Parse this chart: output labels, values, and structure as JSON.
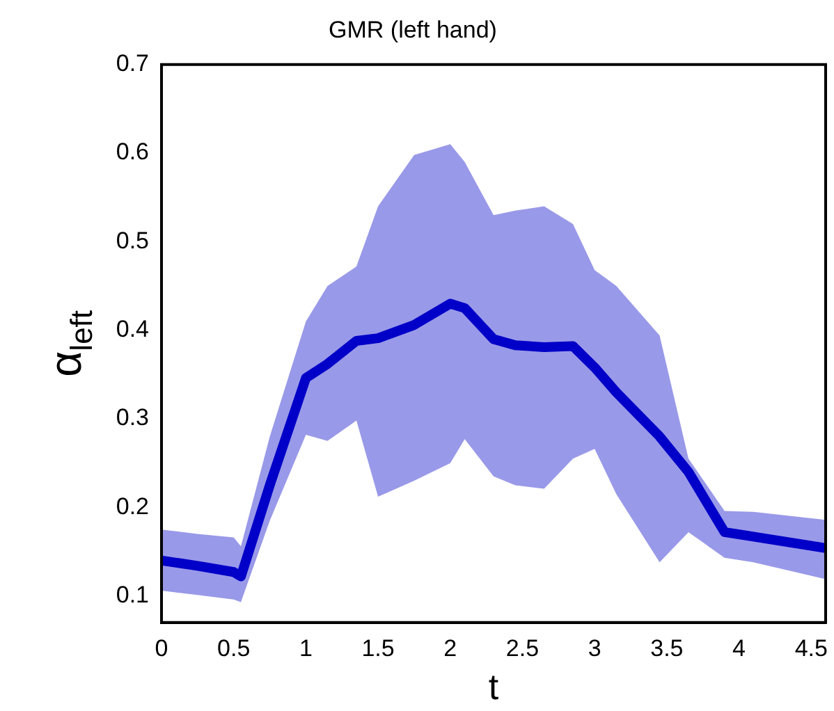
{
  "chart_data": {
    "type": "line",
    "title": "GMR (left hand)",
    "xlabel": "t",
    "ylabel": "α$_{left}$",
    "x": [
      0,
      0.25,
      0.5,
      0.55,
      0.75,
      1.0,
      1.15,
      1.35,
      1.5,
      1.75,
      2.0,
      2.1,
      2.3,
      2.45,
      2.65,
      2.85,
      3.0,
      3.15,
      3.45,
      3.65,
      3.9,
      4.1,
      4.6
    ],
    "series": [
      {
        "color": "#0000c8",
        "values": [
          0.14,
          0.134,
          0.127,
          0.122,
          0.225,
          0.346,
          0.362,
          0.388,
          0.391,
          0.406,
          0.43,
          0.425,
          0.39,
          0.383,
          0.381,
          0.382,
          0.358,
          0.33,
          0.28,
          0.24,
          0.172,
          0.167,
          0.154
        ],
        "lower": [
          0.106,
          0.101,
          0.096,
          0.093,
          0.185,
          0.282,
          0.275,
          0.298,
          0.212,
          0.23,
          0.25,
          0.277,
          0.235,
          0.225,
          0.221,
          0.255,
          0.266,
          0.215,
          0.138,
          0.172,
          0.143,
          0.138,
          0.119
        ],
        "upper": [
          0.175,
          0.17,
          0.166,
          0.156,
          0.28,
          0.41,
          0.45,
          0.472,
          0.54,
          0.598,
          0.61,
          0.59,
          0.53,
          0.535,
          0.54,
          0.52,
          0.468,
          0.45,
          0.394,
          0.255,
          0.196,
          0.195,
          0.186
        ]
      }
    ],
    "xlim": [
      0,
      4.6
    ],
    "ylim": [
      0.07,
      0.7
    ],
    "xticks": [
      0,
      0.5,
      1,
      1.5,
      2,
      2.5,
      3,
      3.5,
      4,
      4.5
    ],
    "yticks": [
      0.1,
      0.2,
      0.3,
      0.4,
      0.5,
      0.6,
      0.7
    ]
  }
}
